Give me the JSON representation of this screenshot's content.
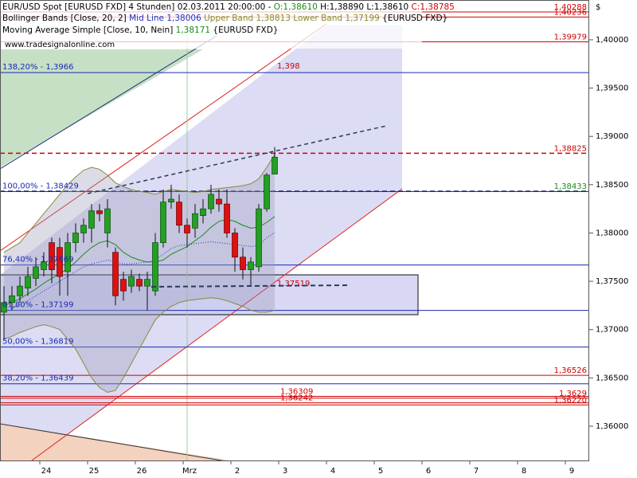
{
  "chart_data": {
    "type": "candlestick",
    "header": {
      "title": "EUR/USD Spot [EURUSD FXD]  4 Stunden] 02.03.2011 20:00:00 -",
      "open": "O:1,38610",
      "high": "H:1,38890",
      "low": "L:1,38610",
      "close": "C:1,38785"
    },
    "legend": {
      "bollinger": "Bollinger Bands [Close, 20, 2]",
      "mid": "Mid Line 1,38006",
      "upper": "Upper Band 1,38813",
      "lower": "Lower Band 1,37199",
      "source": "{EURUSD FXD}",
      "ma": "Moving Average Simple [Close, 10, Nein]",
      "ma_value": "1,38171"
    },
    "watermark": "www.tradesignalonline.com",
    "currency": "$",
    "annotations": [
      "1,398",
      "1,37519"
    ],
    "categories": [
      null,
      null,
      null,
      null,
      null,
      "24",
      null,
      null,
      null,
      null,
      null,
      "25",
      null,
      null,
      null,
      null,
      null,
      "26",
      null,
      null,
      null,
      null,
      null,
      "Mrz",
      null,
      null,
      null,
      null,
      null,
      "2",
      null,
      null,
      null,
      null,
      null,
      "3",
      null,
      null,
      null,
      null,
      null,
      "4",
      null,
      null,
      null,
      null,
      null,
      "5",
      null,
      null,
      null,
      null,
      null,
      "6",
      null,
      null,
      null,
      null,
      null,
      "7",
      null,
      null,
      null,
      null,
      null,
      "8",
      null,
      null,
      null,
      null,
      null,
      "9",
      null,
      null
    ],
    "open": [
      1.3718,
      1.3728,
      1.3735,
      1.3743,
      1.3753,
      1.3762,
      1.379,
      1.3785,
      1.376,
      1.379,
      1.38,
      1.3805,
      1.3823,
      1.38,
      1.378,
      1.3752,
      1.3745,
      1.3752,
      1.3745,
      1.374,
      1.379,
      1.3832,
      1.3832,
      1.3808,
      1.3805,
      1.3818,
      1.3825,
      1.3835,
      1.383,
      1.38,
      1.3775,
      1.3762,
      1.3765,
      1.3825,
      1.3861,
      null,
      null,
      null,
      null,
      null,
      null,
      null,
      null,
      null,
      null,
      null,
      null,
      null,
      null,
      null,
      null,
      null,
      null,
      null,
      null,
      null,
      null,
      null,
      null,
      null,
      null,
      null,
      null,
      null,
      null,
      null,
      null,
      null,
      null,
      null,
      null,
      null,
      null,
      null
    ],
    "high": [
      1.3745,
      1.3745,
      1.3755,
      1.3765,
      1.3775,
      1.378,
      1.3795,
      1.3795,
      1.38,
      1.381,
      1.3815,
      1.383,
      1.383,
      1.3835,
      1.3785,
      1.376,
      1.3762,
      1.3758,
      1.376,
      1.38,
      1.3845,
      1.385,
      1.384,
      1.3815,
      1.383,
      1.3835,
      1.385,
      1.3845,
      1.3845,
      1.3805,
      1.3785,
      1.3775,
      1.383,
      1.3862,
      1.3889,
      null,
      null,
      null,
      null,
      null,
      null,
      null,
      null,
      null,
      null,
      null,
      null,
      null,
      null,
      null,
      null,
      null,
      null,
      null,
      null,
      null,
      null,
      null,
      null,
      null,
      null,
      null,
      null,
      null,
      null,
      null,
      null,
      null,
      null,
      null,
      null,
      null,
      null,
      null
    ],
    "low": [
      1.369,
      1.372,
      1.3728,
      1.3735,
      1.3745,
      1.3755,
      1.3748,
      1.3735,
      1.3735,
      1.378,
      1.379,
      1.379,
      1.3812,
      1.3785,
      1.3725,
      1.373,
      1.3738,
      1.374,
      1.372,
      1.3735,
      1.3785,
      1.3825,
      1.38,
      1.3785,
      1.3795,
      1.381,
      1.382,
      1.3822,
      1.3795,
      1.376,
      1.3752,
      1.3745,
      1.376,
      1.3822,
      1.3861,
      null,
      null,
      null,
      null,
      null,
      null,
      null,
      null,
      null,
      null,
      null,
      null,
      null,
      null,
      null,
      null,
      null,
      null,
      null,
      null,
      null,
      null,
      null,
      null,
      null,
      null,
      null,
      null,
      null,
      null,
      null,
      null,
      null,
      null,
      null,
      null,
      null,
      null,
      null
    ],
    "close": [
      1.3728,
      1.3735,
      1.3745,
      1.3755,
      1.3765,
      1.377,
      1.3762,
      1.3755,
      1.379,
      1.38,
      1.3808,
      1.3823,
      1.382,
      1.3825,
      1.3735,
      1.374,
      1.3755,
      1.3745,
      1.3752,
      1.379,
      1.3832,
      1.3835,
      1.3808,
      1.38,
      1.382,
      1.3825,
      1.384,
      1.383,
      1.38,
      1.3775,
      1.3762,
      1.377,
      1.3825,
      1.386,
      1.38785,
      null,
      null,
      null,
      null,
      null,
      null,
      null,
      null,
      null,
      null,
      null,
      null,
      null,
      null,
      null,
      null,
      null,
      null,
      null,
      null,
      null,
      null,
      null,
      null,
      null,
      null,
      null,
      null,
      null,
      null,
      null,
      null,
      null,
      null,
      null,
      null,
      null,
      null,
      null
    ],
    "up_color": "#22a022",
    "down_color": "#e01010",
    "indicators": [
      {
        "color": "#8a8a3a",
        "values": [
          1.378,
          1.3785,
          1.379,
          1.38,
          1.381,
          1.382,
          1.383,
          1.384,
          1.385,
          1.3858,
          1.3865,
          1.3868,
          1.3866,
          1.386,
          1.3852,
          1.3848,
          1.3845,
          1.3843,
          1.3842,
          1.384,
          1.3843,
          1.3845,
          1.3844,
          1.3843,
          1.3842,
          1.3843,
          1.3845,
          1.3846,
          1.3847,
          1.3848,
          1.3849,
          1.3851,
          1.3856,
          1.3868,
          1.38813,
          null,
          null,
          null,
          null,
          null,
          null,
          null,
          null,
          null,
          null,
          null,
          null,
          null,
          null,
          null,
          null,
          null,
          null,
          null,
          null,
          null,
          null,
          null,
          null,
          null,
          null,
          null,
          null,
          null,
          null,
          null,
          null,
          null,
          null,
          null,
          null,
          null,
          null,
          null
        ]
      },
      {
        "color": "#8a8a3a",
        "values": [
          1.369,
          1.3693,
          1.3697,
          1.37,
          1.3703,
          1.3705,
          1.3703,
          1.37,
          1.369,
          1.368,
          1.3665,
          1.365,
          1.364,
          1.3635,
          1.3637,
          1.365,
          1.3665,
          1.368,
          1.3695,
          1.371,
          1.3718,
          1.3724,
          1.3728,
          1.373,
          1.3731,
          1.3732,
          1.3733,
          1.3732,
          1.373,
          1.3727,
          1.3724,
          1.372,
          1.3718,
          1.3718,
          1.37199,
          null,
          null,
          null,
          null,
          null,
          null,
          null,
          null,
          null,
          null,
          null,
          null,
          null,
          null,
          null,
          null,
          null,
          null,
          null,
          null,
          null,
          null,
          null,
          null,
          null,
          null,
          null,
          null,
          null,
          null,
          null,
          null,
          null,
          null,
          null,
          null,
          null,
          null,
          null
        ]
      },
      {
        "color": "#2030c0",
        "dashed": true,
        "values": [
          1.3718,
          1.3722,
          1.3726,
          1.373,
          1.3735,
          1.374,
          1.3745,
          1.375,
          1.3755,
          1.376,
          1.3765,
          1.3768,
          1.377,
          1.3772,
          1.377,
          1.3768,
          1.3768,
          1.3769,
          1.377,
          1.3772,
          1.3778,
          1.3784,
          1.3787,
          1.3788,
          1.3789,
          1.379,
          1.3791,
          1.379,
          1.3789,
          1.3788,
          1.3787,
          1.3786,
          1.3787,
          1.3795,
          1.38006,
          null,
          null,
          null,
          null,
          null,
          null,
          null,
          null,
          null,
          null,
          null,
          null,
          null,
          null,
          null,
          null,
          null,
          null,
          null,
          null,
          null,
          null,
          null,
          null,
          null,
          null,
          null,
          null,
          null,
          null,
          null,
          null,
          null,
          null,
          null,
          null,
          null,
          null,
          null
        ]
      },
      {
        "color": "#1a8c1a",
        "values": [
          1.3725,
          1.3728,
          1.3732,
          1.3737,
          1.3742,
          1.3748,
          1.3753,
          1.3758,
          1.3763,
          1.377,
          1.3778,
          1.3785,
          1.379,
          1.3792,
          1.3788,
          1.378,
          1.3775,
          1.3772,
          1.377,
          1.377,
          1.3772,
          1.3778,
          1.3782,
          1.3786,
          1.3792,
          1.3798,
          1.3806,
          1.3812,
          1.3814,
          1.3812,
          1.3808,
          1.3805,
          1.3806,
          1.3811,
          1.38171,
          null,
          null,
          null,
          null,
          null,
          null,
          null,
          null,
          null,
          null,
          null,
          null,
          null,
          null,
          null,
          null,
          null,
          null,
          null,
          null,
          null,
          null,
          null,
          null,
          null,
          null,
          null,
          null,
          null,
          null,
          null,
          null,
          null,
          null,
          null,
          null,
          null,
          null,
          null
        ]
      }
    ],
    "levels": [
      {
        "value": 1.40288,
        "label": "1,40288",
        "color": "#d00000"
      },
      {
        "value": 1.40236,
        "label": "1,40236",
        "color": "#d00000"
      },
      {
        "value": 1.39979,
        "label": "1,39979",
        "color": "#d00000"
      },
      {
        "value": 1.38825,
        "label": "1,38825",
        "color": "#d00000",
        "dashed": true
      },
      {
        "value": 1.38433,
        "label": "1,38433",
        "color": "#1a8c1a",
        "line_color": "#1a2a7a",
        "dashed": true
      },
      {
        "value": 1.36526,
        "label": "1,36526",
        "color": "#d00000"
      },
      {
        "value": 1.36309,
        "label": "1,36309",
        "color": "#d00000"
      },
      {
        "value": 1.36242,
        "label": "1,36242",
        "color": "#d00000"
      },
      {
        "value": 1.3629,
        "label": "1,3629",
        "color": "#d00000"
      },
      {
        "value": 1.3622,
        "label": "1,36220",
        "color": "#d00000"
      }
    ],
    "fib_levels": [
      {
        "value": 1.3966,
        "label": "138,20% - 1,3966"
      },
      {
        "value": 1.38429,
        "label": "100,00% - 1,38429"
      },
      {
        "value": 1.37669,
        "label": "76,40% - 1,37669"
      },
      {
        "value": 1.37199,
        "label": "61,80% - 1,37199"
      },
      {
        "value": 1.36819,
        "label": "50,00% - 1,36819"
      },
      {
        "value": 1.36439,
        "label": "38,20% - 1,36439"
      }
    ],
    "fib_color": "#1a2ab0",
    "ylim": [
      1.35645,
      1.40412
    ],
    "yticks": [
      {
        "value": 1.36,
        "label": "1,36000"
      },
      {
        "value": 1.365,
        "label": "1,36500"
      },
      {
        "value": 1.37,
        "label": "1,37000"
      },
      {
        "value": 1.375,
        "label": "1,37500"
      },
      {
        "value": 1.38,
        "label": "1,38000"
      },
      {
        "value": 1.385,
        "label": "1,38500"
      },
      {
        "value": 1.39,
        "label": "1,39000"
      },
      {
        "value": 1.395,
        "label": "1,39500"
      },
      {
        "value": 1.4,
        "label": "1,40000"
      }
    ]
  }
}
